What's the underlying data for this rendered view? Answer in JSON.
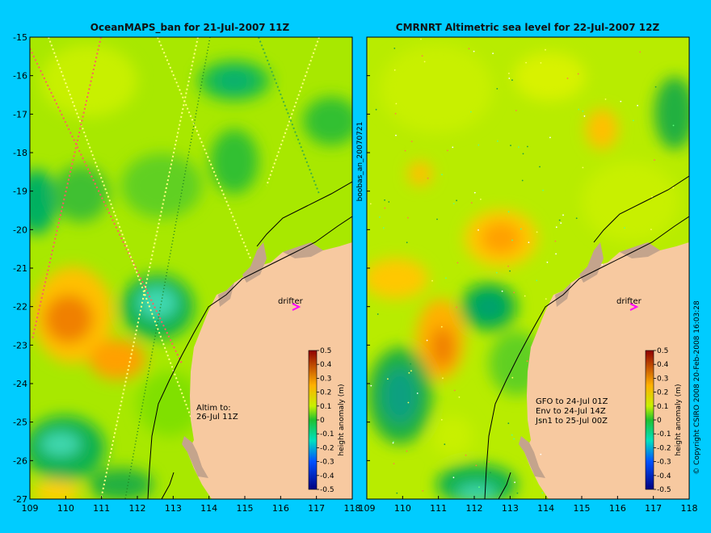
{
  "panels": [
    {
      "title": "OceanMAPS_ban for 21-Jul-2007 11Z",
      "annotation_lines": [
        "Altim to:",
        "26-Jul 11Z"
      ],
      "drifter_label": "drifter",
      "colorbar_label": "height anomaly (m)"
    },
    {
      "title": "CMRNRT Altimetric sea level  for 22-Jul-2007 12Z",
      "annotation_lines": [
        "GFO to 24-Jul 01Z",
        "Env to 24-Jul 14Z",
        "Jsn1 to 25-Jul 00Z"
      ],
      "drifter_label": "drifter",
      "colorbar_label": "height anomaly (m)"
    }
  ],
  "side_label": "boobas_an_20070721",
  "right_credit": "© Copyright CSIRO 2008   20-Feb-2008 16:03:28",
  "axes": {
    "lon_ticks": [
      "109",
      "110",
      "111",
      "112",
      "113",
      "114",
      "115",
      "116",
      "117",
      "118"
    ],
    "lat_ticks": [
      "-15",
      "-16",
      "-17",
      "-18",
      "-19",
      "-20",
      "-21",
      "-22",
      "-23",
      "-24",
      "-25",
      "-26",
      "-27"
    ],
    "lon_range": [
      109,
      118
    ],
    "lat_range": [
      -27,
      -15
    ]
  },
  "colorbar": {
    "ticks": [
      "0.5",
      "0.4",
      "0.3",
      "0.2",
      "0.1",
      "0",
      "-0.1",
      "-0.2",
      "-0.3",
      "-0.4",
      "-0.5"
    ],
    "range": [
      -0.5,
      0.5
    ]
  },
  "colors": {
    "background": "#00ccff",
    "land": "#f7c9a0",
    "islands": "#c4a48c",
    "drifter": "#ff00ff"
  }
}
